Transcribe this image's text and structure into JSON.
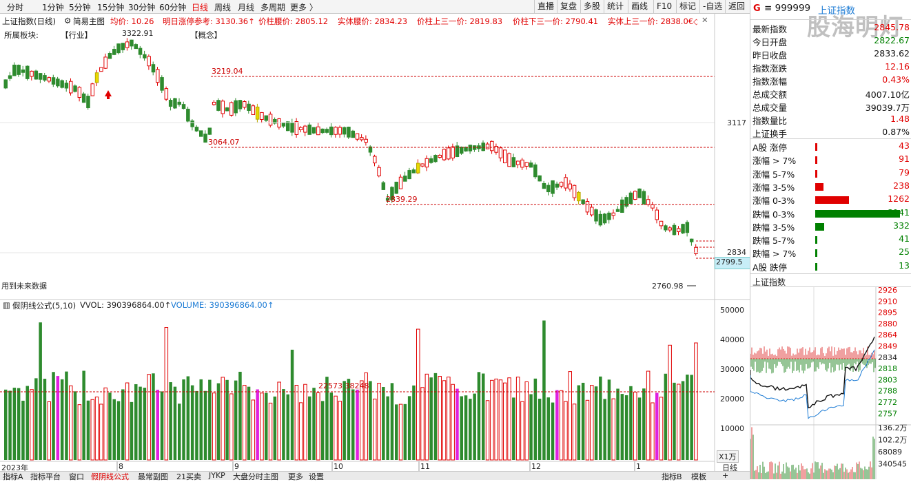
{
  "topbar": {
    "tabs": [
      "分时",
      "1分钟",
      "5分钟",
      "15分钟",
      "30分钟",
      "60分钟",
      "日线",
      "周线",
      "月线",
      "多周期",
      "更多 〉"
    ],
    "active_tab": "日线",
    "right_buttons": [
      "直播",
      "复盘",
      "多股",
      "统计",
      "画线",
      "F10",
      "标记",
      "-自选",
      "返回"
    ]
  },
  "main_header": {
    "index_name": "上证指数(日线)",
    "mode": "简易主图",
    "items": [
      "均价: 10.26",
      "明日涨停参考: 3130.36↑",
      "价柱腰价: 2805.12",
      "实体腰价: 2834.23",
      "价柱上三一价: 2819.83",
      "价柱下三一价: 2790.41",
      "实体上三一价: 2838.0€◇"
    ]
  },
  "sector_row": {
    "label": "所属板块:",
    "industry": "【行业】",
    "concept": "【概念】"
  },
  "annotations": {
    "high_3219": "3219.04",
    "low_3064": "3064.07",
    "low_2839": "2839.29",
    "low_2760": "2760.98",
    "peak_label": "3322.91",
    "future_data": "用到未来数据",
    "vol_ref": "22573 38248"
  },
  "price_axis": {
    "tick_3117": "3117",
    "tick_2834": "2834",
    "current_price_box": "2799.5"
  },
  "volume_header": {
    "formula": "假阴线公式(5,10)",
    "vvol": "VVOL: 390396864.00↑",
    "volume": "VOLUME: 390396864.00↑"
  },
  "volume_axis": {
    "ticks": [
      "50000",
      "40000",
      "30000",
      "20000",
      "10000"
    ],
    "unit": "X1万"
  },
  "date_axis": [
    "2023年",
    "8",
    "9",
    "10",
    "11",
    "12",
    "1"
  ],
  "bottom_tabs": [
    "指标A",
    "指标平台",
    "窗口",
    "假阴线公式",
    "最常副图",
    "21买卖",
    "JYKP",
    "大盘分时主图",
    "更多",
    "设置"
  ],
  "bottom_tabs_right": [
    "指标B",
    "模板",
    "+"
  ],
  "right_panel": {
    "header": {
      "flag": "G",
      "code": "≡ 999999",
      "name": "上证指数",
      "watermark": "股海明灯"
    },
    "stats": [
      {
        "label": "最新指数",
        "value": "2845.78",
        "color": "#e00000"
      },
      {
        "label": "今日开盘",
        "value": "2822.67",
        "color": "#008000"
      },
      {
        "label": "昨日收盘",
        "value": "2833.62",
        "color": "#111111"
      },
      {
        "label": "指数涨跌",
        "value": "12.16",
        "color": "#e00000"
      },
      {
        "label": "指数涨幅",
        "value": "0.43%",
        "color": "#e00000"
      },
      {
        "label": "总成交额",
        "value": "4007.10亿",
        "color": "#111111"
      },
      {
        "label": "总成交量",
        "value": "39039.7万",
        "color": "#111111"
      },
      {
        "label": "指数量比",
        "value": "1.48",
        "color": "#e00000"
      },
      {
        "label": "上证换手",
        "value": "0.87%",
        "color": "#111111"
      }
    ],
    "distribution": [
      {
        "label": "A股 涨停",
        "value": "43",
        "color": "#e00000",
        "bar": 2
      },
      {
        "label": "涨幅 > 7%",
        "value": "91",
        "color": "#e00000",
        "bar": 2
      },
      {
        "label": "涨幅 5-7%",
        "value": "79",
        "color": "#e00000",
        "bar": 2
      },
      {
        "label": "涨幅 3-5%",
        "value": "238",
        "color": "#e00000",
        "bar": 8
      },
      {
        "label": "涨幅 0-3%",
        "value": "1262",
        "color": "#e00000",
        "bar": 34
      },
      {
        "label": "跌幅 0-3%",
        "value": "3141",
        "color": "#008000",
        "bar": 85
      },
      {
        "label": "跌幅 3-5%",
        "value": "332",
        "color": "#008000",
        "bar": 9
      },
      {
        "label": "跌幅 5-7%",
        "value": "41",
        "color": "#008000",
        "bar": 2
      },
      {
        "label": "跌幅 > 7%",
        "value": "25",
        "color": "#008000",
        "bar": 2
      },
      {
        "label": "A股 跌停",
        "value": "13",
        "color": "#008000",
        "bar": 2
      }
    ],
    "mini_title": "上证指数",
    "mini_price_ticks": [
      "2926",
      "2910",
      "2895",
      "2880",
      "2864",
      "2849",
      "2834",
      "2818",
      "2803",
      "2788",
      "2772",
      "2757"
    ],
    "mini_vol_ticks": [
      "136.2万",
      "102.2万",
      "68089",
      "340545"
    ]
  },
  "colors": {
    "up": "#e00000",
    "down": "#2e8b2e",
    "magenta": "#e020e0",
    "yellow": "#e8d800",
    "dashed": "#cc0000"
  }
}
